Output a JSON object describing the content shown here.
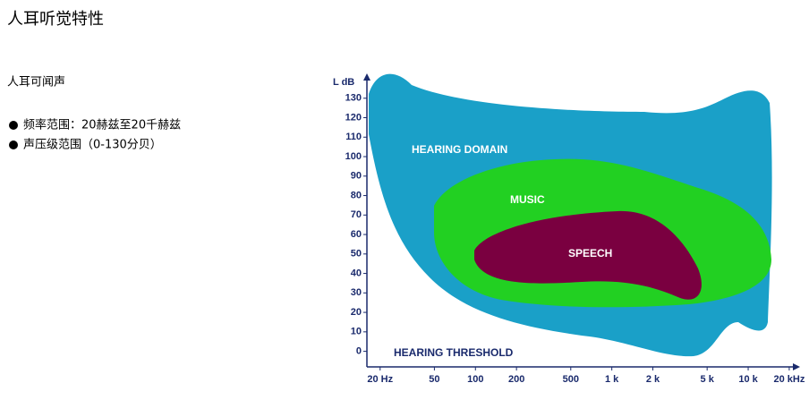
{
  "title": "人耳听觉特性",
  "subtitle": "人耳可闻声",
  "bullets": [
    "频率范围：20赫兹至20千赫兹",
    "声压级范围（0-130分贝）"
  ],
  "chart_data": {
    "type": "region",
    "ylabel": "L dB",
    "ylim": [
      -8,
      140
    ],
    "yticks": [
      0,
      10,
      20,
      30,
      40,
      50,
      60,
      70,
      80,
      90,
      100,
      110,
      120,
      130
    ],
    "xscale": "log",
    "xlim": [
      16,
      22600
    ],
    "xticks": [
      {
        "value": 20,
        "label": "20 Hz"
      },
      50,
      100,
      200,
      500,
      {
        "value": 1000,
        "label": "1 k"
      },
      {
        "value": 2000,
        "label": "2 k"
      },
      {
        "value": 5000,
        "label": "5 k"
      },
      {
        "value": 10000,
        "label": "10 k"
      },
      {
        "value": 20000,
        "label": "20 kHz"
      }
    ],
    "regions": [
      {
        "name": "HEARING DOMAIN",
        "color": "#1aa0c8"
      },
      {
        "name": "MUSIC",
        "color": "#22d022"
      },
      {
        "name": "SPEECH",
        "color": "#7a0040"
      }
    ],
    "annotation": "HEARING THRESHOLD"
  }
}
